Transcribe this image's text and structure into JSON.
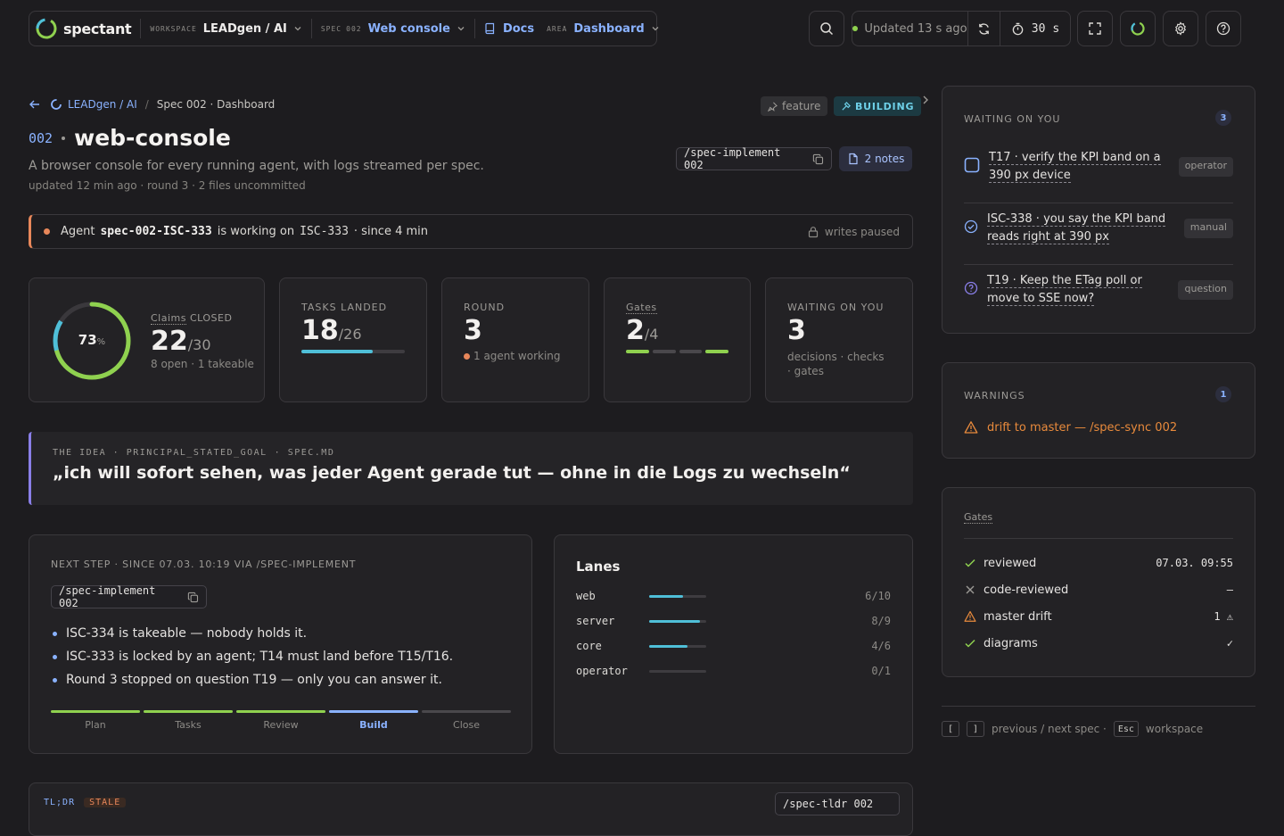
{
  "app": {
    "name": "spectant"
  },
  "nav": {
    "workspace_label": "WORKSPACE",
    "workspace_value": "LEADgen / AI",
    "spec_label": "SPEC",
    "spec_num": "002",
    "spec_value": "Web console",
    "docs_label": "Docs",
    "area_label": "AREA",
    "area_value": "Dashboard"
  },
  "toolbar": {
    "updated_text": "Updated 13 s ago",
    "interval_value": "30",
    "interval_unit": "s"
  },
  "breadcrumb": {
    "workspace": "LEADgen / AI",
    "separator": "/",
    "current": "Spec 002 · Dashboard"
  },
  "tags": {
    "feature": "feature",
    "status": "BUILDING"
  },
  "spec": {
    "number": "002",
    "name": "web-console",
    "description": "A browser console for every running agent, with logs streamed per spec.",
    "meta": "updated 12 min ago · round 3 · 2 files uncommitted",
    "command": "/spec-implement 002",
    "notes_label": "2 notes"
  },
  "agent_status": {
    "prefix": "Agent",
    "agent_id": "spec-002-ISC-333",
    "middle": "is working on",
    "task_id": "ISC-333",
    "since": "· since 4 min",
    "lock_text": "writes paused"
  },
  "stats": {
    "claims": {
      "percent": 73,
      "percent_label": "73",
      "percent_sign": "%",
      "label_word": "Claims",
      "label_suffix": "CLOSED",
      "value": "22",
      "total": "/30",
      "sub": "8 open · 1 takeable"
    },
    "tasks": {
      "label": "TASKS LANDED",
      "value": "18",
      "total": "/26",
      "progress": 0.69
    },
    "round": {
      "label": "ROUND",
      "value": "3",
      "sub": "1 agent working"
    },
    "gates": {
      "label": "Gates",
      "value": "2",
      "total": "/4"
    },
    "waiting": {
      "label": "WAITING ON YOU",
      "value": "3",
      "sub": "decisions · checks · gates"
    }
  },
  "idea": {
    "label_a": "THE IDEA · PRINCIPAL_STATED_GOAL",
    "label_b": "· SPEC.MD",
    "quote": "„ich will sofort sehen, was jeder Agent gerade tut — ohne in die Logs zu wechseln“"
  },
  "next_step": {
    "header": "NEXT STEP · SINCE 07.03. 10:19 VIA /SPEC-IMPLEMENT",
    "command": "/spec-implement 002",
    "bullets": [
      "ISC-334 is takeable — nobody holds it.",
      "ISC-333 is locked by an agent; T14 must land before T15/T16.",
      "Round 3 stopped on question T19 — only you can answer it."
    ],
    "phases": [
      {
        "name": "Plan",
        "state": "done"
      },
      {
        "name": "Tasks",
        "state": "done"
      },
      {
        "name": "Review",
        "state": "done"
      },
      {
        "name": "Build",
        "state": "active"
      },
      {
        "name": "Close",
        "state": "todo"
      }
    ]
  },
  "lanes": {
    "title": "Lanes",
    "items": [
      {
        "name": "web",
        "count": "6/10",
        "done": 6,
        "total": 10
      },
      {
        "name": "server",
        "count": "8/9",
        "done": 8,
        "total": 9
      },
      {
        "name": "core",
        "count": "4/6",
        "done": 4,
        "total": 6
      },
      {
        "name": "operator",
        "count": "0/1",
        "done": 0,
        "total": 1
      }
    ]
  },
  "waiting_panel": {
    "title": "WAITING ON YOU",
    "count": "3",
    "items": [
      {
        "text": "T17 · verify the KPI band on a 390 px device",
        "tag": "operator",
        "icon": "checkbox-icon"
      },
      {
        "text": "ISC-338 · you say the KPI band reads right at 390 px",
        "tag": "manual",
        "icon": "check-circle-icon"
      },
      {
        "text": "T19 · Keep the ETag poll or move to SSE now?",
        "tag": "question",
        "icon": "question-circle-icon"
      }
    ]
  },
  "warnings_panel": {
    "title": "WARNINGS",
    "count": "1",
    "item": "drift to master — /spec-sync 002"
  },
  "gates_panel": {
    "title": "Gates",
    "items": [
      {
        "name": "reviewed",
        "value": "07.03. 09:55",
        "status": "pass"
      },
      {
        "name": "code-reviewed",
        "value": "—",
        "status": "fail"
      },
      {
        "name": "master drift",
        "value": "1 ⚠",
        "status": "warn"
      },
      {
        "name": "diagrams",
        "value": "✓",
        "status": "pass"
      }
    ]
  },
  "shortcuts": {
    "key_prev": "[",
    "key_next": "]",
    "prevnext_label": "previous / next spec ·",
    "key_esc": "Esc",
    "esc_label": "workspace"
  },
  "footer_card": {
    "label": "TL;DR",
    "badge": "STALE",
    "command": "/spec-tldr 002"
  },
  "colors": {
    "accent": "#8ab2ff",
    "green": "#8fd14f",
    "cyan": "#4fbfd8",
    "orange": "#e8875a",
    "warning": "#e88a3c"
  }
}
